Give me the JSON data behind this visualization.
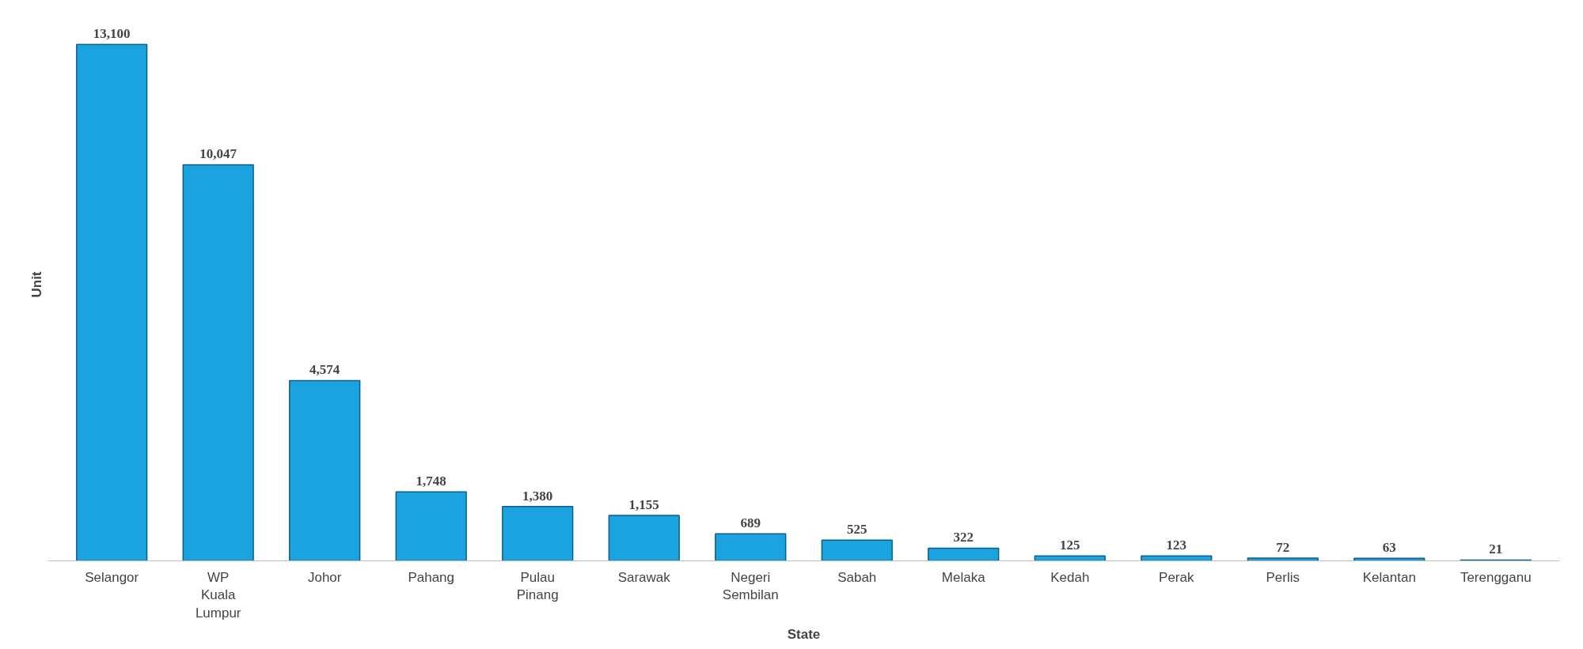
{
  "chart_data": {
    "type": "bar",
    "xlabel": "State",
    "ylabel": "Unit",
    "categories": [
      "Selangor",
      "WP Kuala Lumpur",
      "Johor",
      "Pahang",
      "Pulau Pinang",
      "Sarawak",
      "Negeri Sembilan",
      "Sabah",
      "Melaka",
      "Kedah",
      "Perak",
      "Perlis",
      "Kelantan",
      "Terengganu"
    ],
    "values": [
      13100,
      10047,
      4574,
      1748,
      1380,
      1155,
      689,
      525,
      322,
      125,
      123,
      72,
      63,
      21
    ],
    "value_labels": [
      "13,100",
      "10,047",
      "4,574",
      "1,748",
      "1,380",
      "1,155",
      "689",
      "525",
      "322",
      "125",
      "123",
      "72",
      "63",
      "21"
    ],
    "color": "#1ba3e0",
    "tick_labels": "x",
    "grid": false
  }
}
